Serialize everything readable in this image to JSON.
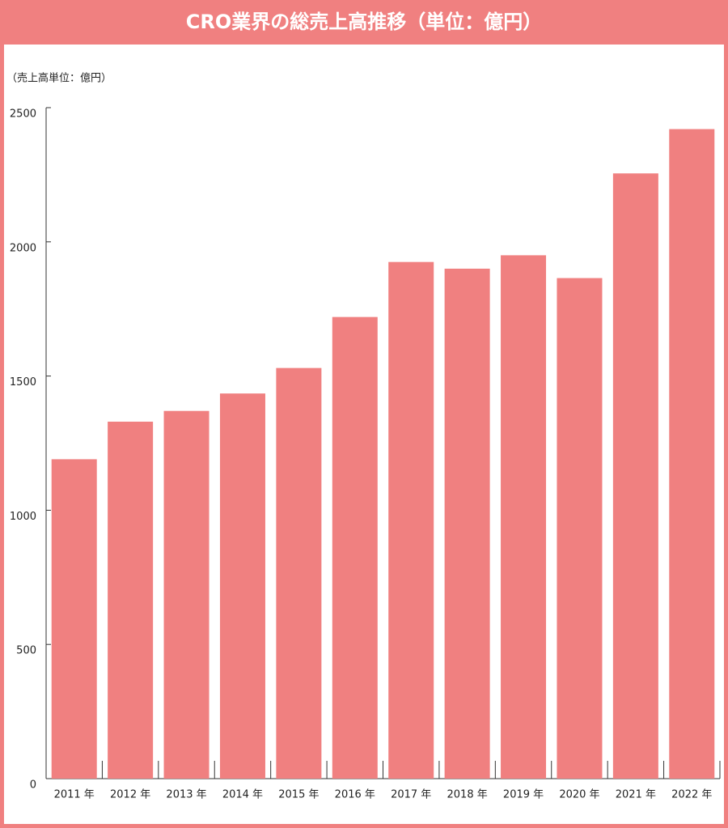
{
  "chart_data": {
    "type": "bar",
    "title": "CRO業界の総売上高推移（単位：億円）",
    "y_axis_label": "（売上高単位：億円）",
    "categories": [
      "2011 年",
      "2012 年",
      "2013 年",
      "2014 年",
      "2015 年",
      "2016 年",
      "2017 年",
      "2018 年",
      "2019 年",
      "2020 年",
      "2021 年",
      "2022 年"
    ],
    "values": [
      1190,
      1330,
      1370,
      1435,
      1530,
      1720,
      1925,
      1900,
      1950,
      1865,
      2255,
      2420
    ],
    "color": "#f08080",
    "ylim": [
      0,
      2500
    ],
    "yticks": [
      0,
      500,
      1000,
      1500,
      2000,
      2500
    ],
    "grid": false
  }
}
